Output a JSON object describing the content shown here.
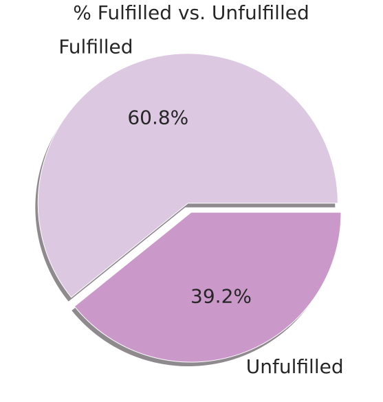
{
  "chart_data": {
    "type": "pie",
    "title": "% Fulfilled vs. Unfulfilled",
    "categories": [
      "Fulfilled",
      "Unfulfilled"
    ],
    "values": [
      60.8,
      39.2
    ],
    "value_labels": [
      "60.8%",
      "39.2%"
    ],
    "colors": [
      "#dcc9e1",
      "#cb99c9"
    ],
    "shadow_color": "#8e8a8e",
    "start_angle_deg": 0,
    "exploded": [
      true,
      false
    ],
    "shadow": true
  }
}
